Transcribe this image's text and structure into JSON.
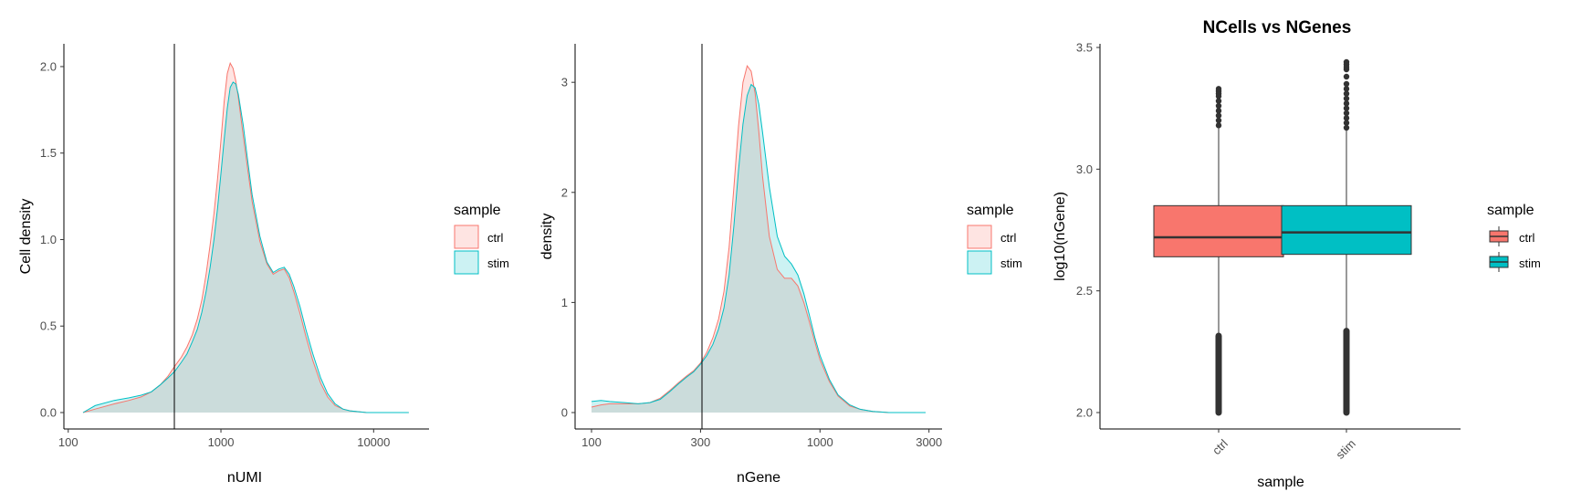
{
  "colors": {
    "ctrl": "#F8766D",
    "stim": "#00BFC4",
    "overlap": "#CCDCDC",
    "axis": "#000000",
    "box_outline": "#333333"
  },
  "chart_data": [
    {
      "type": "area",
      "title": "",
      "xlabel": "nUMI",
      "ylabel": "Cell density",
      "x_scale": "log10",
      "xlim": [
        120,
        18000
      ],
      "ylim": [
        0,
        2.1
      ],
      "x_ticks": [
        100,
        1000,
        10000
      ],
      "x_tick_labels": [
        "100",
        "1000",
        "10000"
      ],
      "y_ticks": [
        0,
        0.5,
        1,
        1.5,
        2
      ],
      "y_tick_labels": [
        "0.0",
        "0.5",
        "1.0",
        "1.5",
        "2.0"
      ],
      "vline": 500,
      "grid": false,
      "legend": {
        "title": "sample",
        "entries": [
          "ctrl",
          "stim"
        ],
        "placement": "right"
      },
      "series": [
        {
          "name": "ctrl",
          "x": [
            125,
            150,
            200,
            250,
            300,
            350,
            400,
            450,
            500,
            550,
            600,
            650,
            700,
            750,
            800,
            850,
            900,
            950,
            1000,
            1050,
            1100,
            1150,
            1200,
            1250,
            1300,
            1400,
            1500,
            1600,
            1800,
            2000,
            2200,
            2400,
            2600,
            2800,
            3000,
            3300,
            3600,
            4000,
            4500,
            5000,
            5600,
            6300,
            7000,
            8000,
            9000,
            10000,
            12000,
            14000,
            17000
          ],
          "y": [
            0.0,
            0.02,
            0.05,
            0.07,
            0.09,
            0.12,
            0.16,
            0.21,
            0.27,
            0.32,
            0.38,
            0.45,
            0.54,
            0.65,
            0.8,
            0.97,
            1.15,
            1.35,
            1.57,
            1.8,
            1.96,
            2.02,
            1.99,
            1.92,
            1.82,
            1.6,
            1.4,
            1.22,
            0.99,
            0.86,
            0.8,
            0.82,
            0.83,
            0.78,
            0.7,
            0.57,
            0.44,
            0.3,
            0.17,
            0.09,
            0.04,
            0.02,
            0.01,
            0.005,
            0.0,
            0.0,
            0.0,
            0.0,
            0.0
          ]
        },
        {
          "name": "stim",
          "x": [
            125,
            150,
            200,
            250,
            300,
            350,
            400,
            450,
            500,
            550,
            600,
            650,
            700,
            750,
            800,
            850,
            900,
            950,
            1000,
            1050,
            1100,
            1150,
            1200,
            1250,
            1300,
            1400,
            1500,
            1600,
            1800,
            2000,
            2200,
            2400,
            2600,
            2800,
            3000,
            3300,
            3600,
            4000,
            4500,
            5000,
            5600,
            6300,
            7000,
            8000,
            9000,
            10000,
            12000,
            14000,
            17000
          ],
          "y": [
            0.0,
            0.04,
            0.07,
            0.085,
            0.1,
            0.12,
            0.16,
            0.2,
            0.24,
            0.29,
            0.34,
            0.41,
            0.48,
            0.58,
            0.7,
            0.84,
            1.0,
            1.18,
            1.38,
            1.58,
            1.76,
            1.88,
            1.91,
            1.9,
            1.84,
            1.66,
            1.45,
            1.26,
            1.02,
            0.87,
            0.81,
            0.83,
            0.84,
            0.8,
            0.73,
            0.61,
            0.48,
            0.34,
            0.2,
            0.11,
            0.05,
            0.02,
            0.01,
            0.005,
            0.0,
            0.0,
            0.0,
            0.0,
            0.0
          ]
        }
      ]
    },
    {
      "type": "area",
      "title": "",
      "xlabel": "nGene",
      "ylabel": "density",
      "x_scale": "log10",
      "xlim": [
        100,
        2900
      ],
      "ylim": [
        0,
        3.3
      ],
      "x_ticks": [
        100,
        300,
        1000,
        3000
      ],
      "x_tick_labels": [
        "100",
        "300",
        "1000",
        "3000"
      ],
      "y_ticks": [
        0,
        1,
        2,
        3
      ],
      "y_tick_labels": [
        "0",
        "1",
        "2",
        "3"
      ],
      "vline": 300,
      "grid": false,
      "legend": {
        "title": "sample",
        "entries": [
          "ctrl",
          "stim"
        ],
        "placement": "right"
      },
      "series": [
        {
          "name": "ctrl",
          "x": [
            100,
            110,
            120,
            140,
            160,
            180,
            200,
            220,
            240,
            260,
            280,
            300,
            320,
            340,
            360,
            380,
            400,
            420,
            440,
            460,
            480,
            500,
            520,
            540,
            560,
            600,
            650,
            700,
            750,
            800,
            850,
            900,
            950,
            1000,
            1100,
            1200,
            1350,
            1500,
            1700,
            2000,
            2400,
            2900
          ],
          "y": [
            0.05,
            0.07,
            0.08,
            0.08,
            0.08,
            0.09,
            0.13,
            0.2,
            0.27,
            0.33,
            0.38,
            0.45,
            0.55,
            0.68,
            0.85,
            1.1,
            1.5,
            2.05,
            2.6,
            3.0,
            3.15,
            3.1,
            2.9,
            2.55,
            2.15,
            1.6,
            1.3,
            1.22,
            1.22,
            1.15,
            1.0,
            0.82,
            0.64,
            0.48,
            0.28,
            0.15,
            0.06,
            0.03,
            0.01,
            0.0,
            0.0,
            0.0
          ]
        },
        {
          "name": "stim",
          "x": [
            100,
            110,
            120,
            140,
            160,
            180,
            200,
            220,
            240,
            260,
            280,
            300,
            320,
            340,
            360,
            380,
            400,
            420,
            440,
            460,
            480,
            500,
            520,
            540,
            560,
            600,
            650,
            700,
            750,
            800,
            850,
            900,
            950,
            1000,
            1100,
            1200,
            1350,
            1500,
            1700,
            2000,
            2400,
            2900
          ],
          "y": [
            0.1,
            0.11,
            0.1,
            0.09,
            0.08,
            0.09,
            0.12,
            0.19,
            0.26,
            0.32,
            0.37,
            0.44,
            0.52,
            0.62,
            0.76,
            0.95,
            1.25,
            1.7,
            2.2,
            2.62,
            2.88,
            2.98,
            2.95,
            2.8,
            2.55,
            2.05,
            1.6,
            1.42,
            1.35,
            1.25,
            1.08,
            0.88,
            0.68,
            0.52,
            0.3,
            0.16,
            0.07,
            0.03,
            0.01,
            0.0,
            0.0,
            0.0
          ]
        }
      ]
    },
    {
      "type": "box",
      "title": "NCells vs NGenes",
      "xlabel": "sample",
      "ylabel": "log10(nGene)",
      "categories": [
        "ctrl",
        "stim"
      ],
      "ylim": [
        1.96,
        3.5
      ],
      "y_ticks": [
        2,
        2.5,
        3,
        3.5
      ],
      "y_tick_labels": [
        "2.0",
        "2.5",
        "3.0",
        "3.5"
      ],
      "grid": false,
      "legend": {
        "title": "sample",
        "entries": [
          "ctrl",
          "stim"
        ],
        "placement": "right"
      },
      "boxes": [
        {
          "name": "ctrl",
          "whisker_low": 2.32,
          "q1": 2.64,
          "median": 2.72,
          "q3": 2.85,
          "whisker_high": 3.17,
          "outlier_low_min": 2.0,
          "outliers_high": [
            3.18,
            3.2,
            3.22,
            3.24,
            3.26,
            3.28,
            3.3,
            3.31,
            3.32,
            3.33
          ]
        },
        {
          "name": "stim",
          "whisker_low": 2.34,
          "q1": 2.65,
          "median": 2.74,
          "q3": 2.85,
          "whisker_high": 3.16,
          "outlier_low_min": 2.0,
          "outliers_high": [
            3.17,
            3.19,
            3.21,
            3.23,
            3.25,
            3.27,
            3.29,
            3.31,
            3.33,
            3.35,
            3.38,
            3.41,
            3.42,
            3.43,
            3.44
          ]
        }
      ]
    }
  ]
}
